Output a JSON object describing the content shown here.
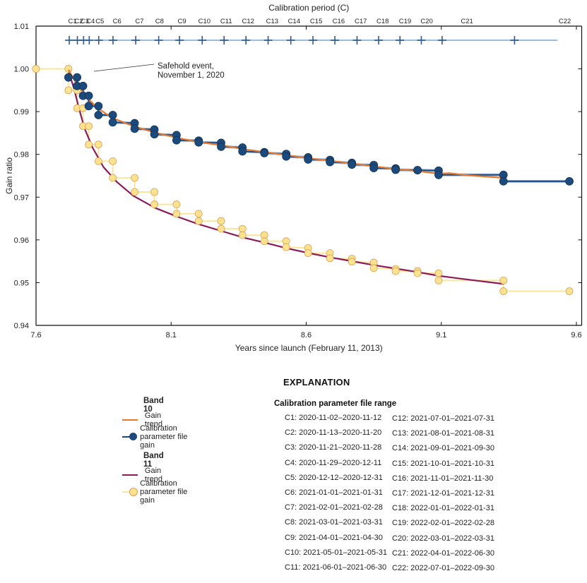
{
  "chart_data": {
    "type": "line",
    "title": "",
    "top_axis_label": "Calibration period (C)",
    "xlabel": "Years since launch (February 11, 2013)",
    "ylabel": "Gain ratio",
    "xlim": [
      7.6,
      9.66
    ],
    "ylim": [
      0.94,
      1.01
    ],
    "x_ticks": [
      7.6,
      8.1,
      8.6,
      9.1,
      9.6
    ],
    "x_tick_labels": [
      "7.6",
      "8.1",
      "8.6",
      "9.1",
      "9.6"
    ],
    "y_ticks": [
      0.94,
      0.95,
      0.96,
      0.97,
      0.98,
      0.99,
      1.0,
      1.01
    ],
    "y_tick_labels": [
      "0.94",
      "0.95",
      "0.96",
      "0.97",
      "0.98",
      "0.99",
      "1.00",
      "1.01"
    ],
    "calibration_periods": {
      "labels": [
        "C1",
        "C2",
        "C3",
        "C4",
        "C5",
        "C6",
        "C7",
        "C8",
        "C9",
        "C10",
        "C11",
        "C12",
        "C13",
        "C14",
        "C15",
        "C16",
        "C17",
        "C18",
        "C19",
        "C20",
        "C21",
        "C22"
      ],
      "label_x": [
        7.735,
        7.758,
        7.78,
        7.802,
        7.836,
        7.9,
        7.983,
        8.057,
        8.14,
        8.223,
        8.304,
        8.385,
        8.474,
        8.555,
        8.637,
        8.72,
        8.802,
        8.883,
        8.966,
        9.046,
        9.195,
        9.557
      ],
      "boundary_x": [
        7.723,
        7.753,
        7.776,
        7.797,
        7.832,
        7.885,
        7.969,
        8.054,
        8.131,
        8.215,
        8.296,
        8.377,
        8.459,
        8.543,
        8.625,
        8.706,
        8.788,
        8.868,
        8.947,
        9.026,
        9.103,
        9.371
      ],
      "line_end_x": 9.53,
      "gain_level": 1.0067
    },
    "annotation": {
      "text_line1": "Safehold event,",
      "text_line2": "November 1, 2020",
      "x": 7.72,
      "y": 0.9985
    },
    "series": [
      {
        "name": "Band 10 Calibration parameter file gain",
        "kind": "step-points",
        "color": "#1d4a7c",
        "line_color": "#1d4a7c",
        "points": [
          [
            7.72,
            0.998
          ],
          [
            7.752,
            0.998
          ],
          [
            7.752,
            0.996
          ],
          [
            7.774,
            0.996
          ],
          [
            7.774,
            0.9937
          ],
          [
            7.795,
            0.9937
          ],
          [
            7.795,
            0.9913
          ],
          [
            7.831,
            0.9913
          ],
          [
            7.831,
            0.9892
          ],
          [
            7.884,
            0.9892
          ],
          [
            7.884,
            0.9875
          ],
          [
            7.965,
            0.9873
          ],
          [
            7.965,
            0.986
          ],
          [
            8.038,
            0.9858
          ],
          [
            8.038,
            0.9847
          ],
          [
            8.12,
            0.9845
          ],
          [
            8.12,
            0.9833
          ],
          [
            8.202,
            0.9832
          ],
          [
            8.202,
            0.9828
          ],
          [
            8.285,
            0.9827
          ],
          [
            8.285,
            0.9818
          ],
          [
            8.364,
            0.9816
          ],
          [
            8.364,
            0.9807
          ],
          [
            8.445,
            0.9805
          ],
          [
            8.445,
            0.9803
          ],
          [
            8.526,
            0.9801
          ],
          [
            8.526,
            0.9795
          ],
          [
            8.607,
            0.9793
          ],
          [
            8.607,
            0.9788
          ],
          [
            8.688,
            0.9787
          ],
          [
            8.688,
            0.9782
          ],
          [
            8.769,
            0.978
          ],
          [
            8.769,
            0.9776
          ],
          [
            8.85,
            0.9775
          ],
          [
            8.85,
            0.9768
          ],
          [
            8.931,
            0.9767
          ],
          [
            8.931,
            0.9764
          ],
          [
            9.012,
            0.9763
          ],
          [
            9.012,
            0.9763
          ],
          [
            9.09,
            0.9762
          ],
          [
            9.09,
            0.9752
          ],
          [
            9.33,
            0.9752
          ],
          [
            9.33,
            0.9737
          ],
          [
            9.574,
            0.9737
          ]
        ]
      },
      {
        "name": "Band 10 Gain trend",
        "kind": "line",
        "color": "#e8782b",
        "points": [
          [
            7.72,
            0.9998
          ],
          [
            7.75,
            0.9965
          ],
          [
            7.78,
            0.994
          ],
          [
            7.82,
            0.9912
          ],
          [
            7.88,
            0.9886
          ],
          [
            7.96,
            0.9866
          ],
          [
            8.04,
            0.9851
          ],
          [
            8.12,
            0.9839
          ],
          [
            8.2,
            0.9829
          ],
          [
            8.29,
            0.9821
          ],
          [
            8.37,
            0.9812
          ],
          [
            8.45,
            0.9805
          ],
          [
            8.53,
            0.9798
          ],
          [
            8.61,
            0.9791
          ],
          [
            8.69,
            0.9785
          ],
          [
            8.77,
            0.9779
          ],
          [
            8.85,
            0.9772
          ],
          [
            8.93,
            0.9766
          ],
          [
            9.01,
            0.9761
          ],
          [
            9.09,
            0.9755
          ],
          [
            9.13,
            0.9756
          ],
          [
            9.2,
            0.9751
          ],
          [
            9.33,
            0.9745
          ]
        ]
      },
      {
        "name": "Band 11 Calibration parameter file gain",
        "kind": "step-points",
        "color": "#fde28f",
        "line_color": "#fbe69b",
        "marker_edge": "#d9a05a",
        "points": [
          [
            7.6,
            1.0
          ],
          [
            7.72,
            1.0
          ],
          [
            7.72,
            0.995
          ],
          [
            7.752,
            0.995
          ],
          [
            7.752,
            0.9908
          ],
          [
            7.774,
            0.9908
          ],
          [
            7.774,
            0.9866
          ],
          [
            7.795,
            0.9866
          ],
          [
            7.795,
            0.9823
          ],
          [
            7.831,
            0.9823
          ],
          [
            7.831,
            0.9784
          ],
          [
            7.884,
            0.9784
          ],
          [
            7.884,
            0.9745
          ],
          [
            7.965,
            0.9745
          ],
          [
            7.965,
            0.9712
          ],
          [
            8.038,
            0.9712
          ],
          [
            8.038,
            0.9683
          ],
          [
            8.12,
            0.9683
          ],
          [
            8.12,
            0.9661
          ],
          [
            8.202,
            0.9661
          ],
          [
            8.202,
            0.9644
          ],
          [
            8.285,
            0.9644
          ],
          [
            8.285,
            0.9626
          ],
          [
            8.364,
            0.9626
          ],
          [
            8.364,
            0.9611
          ],
          [
            8.445,
            0.9611
          ],
          [
            8.445,
            0.9597
          ],
          [
            8.526,
            0.9597
          ],
          [
            8.526,
            0.9583
          ],
          [
            8.607,
            0.9581
          ],
          [
            8.607,
            0.9569
          ],
          [
            8.688,
            0.9569
          ],
          [
            8.688,
            0.9557
          ],
          [
            8.769,
            0.9556
          ],
          [
            8.769,
            0.9549
          ],
          [
            8.85,
            0.9547
          ],
          [
            8.85,
            0.9534
          ],
          [
            8.931,
            0.9532
          ],
          [
            8.931,
            0.9527
          ],
          [
            9.012,
            0.9527
          ],
          [
            9.012,
            0.9522
          ],
          [
            9.09,
            0.9522
          ],
          [
            9.09,
            0.9505
          ],
          [
            9.33,
            0.9505
          ],
          [
            9.33,
            0.948
          ],
          [
            9.574,
            0.948
          ]
        ]
      },
      {
        "name": "Band 11 Gain trend",
        "kind": "line",
        "color": "#8c1a5a",
        "points": [
          [
            7.72,
            0.9995
          ],
          [
            7.74,
            0.9955
          ],
          [
            7.76,
            0.9905
          ],
          [
            7.78,
            0.986
          ],
          [
            7.81,
            0.9815
          ],
          [
            7.85,
            0.977
          ],
          [
            7.9,
            0.9735
          ],
          [
            7.96,
            0.9703
          ],
          [
            8.04,
            0.9675
          ],
          [
            8.12,
            0.9655
          ],
          [
            8.2,
            0.9637
          ],
          [
            8.29,
            0.962
          ],
          [
            8.37,
            0.9605
          ],
          [
            8.45,
            0.9593
          ],
          [
            8.53,
            0.958
          ],
          [
            8.61,
            0.9569
          ],
          [
            8.69,
            0.9559
          ],
          [
            8.77,
            0.955
          ],
          [
            8.85,
            0.9541
          ],
          [
            8.93,
            0.9533
          ],
          [
            9.01,
            0.9525
          ],
          [
            9.09,
            0.9516
          ],
          [
            9.2,
            0.9507
          ],
          [
            9.33,
            0.9497
          ]
        ]
      }
    ]
  },
  "legend": {
    "explanation_title": "EXPLANATION",
    "band10": {
      "title": "Band 10",
      "trend_label": "Gain trend",
      "gain_label": "Calibration parameter file gain",
      "trend_color": "#e8782b",
      "gain_color": "#1d4a7c"
    },
    "band11": {
      "title": "Band 11",
      "trend_label": "Gain trend",
      "gain_label": "Calibration parameter file gain",
      "trend_color": "#8c1a5a",
      "gain_color": "#fde28f"
    },
    "calibration_range_title": "Calibration parameter file range",
    "calibration_ranges_col1": [
      "C1: 2020-11-02–2020-11-12",
      "C2: 2020-11-13–2020-11-20",
      "C3: 2020-11-21–2020-11-28",
      "C4: 2020-11-29–2020-12-11",
      "C5: 2020-12-12–2020-12-31",
      "C6: 2021-01-01–2021-01-31",
      "C7: 2021-02-01–2021-02-28",
      "C8: 2021-03-01–2021-03-31",
      "C9: 2021-04-01–2021-04-30",
      "C10: 2021-05-01–2021-05-31",
      "C11: 2021-06-01–2021-06-30"
    ],
    "calibration_ranges_col2": [
      "C12: 2021-07-01–2021-07-31",
      "C13: 2021-08-01–2021-08-31",
      "C14: 2021-09-01–2021-09-30",
      "C15: 2021-10-01–2021-10-31",
      "C16: 2021-11-01–2021-11-30",
      "C17: 2021-12-01–2021-12-31",
      "C18: 2022-01-01–2022-01-31",
      "C19: 2022-02-01–2022-02-28",
      "C20: 2022-03-01–2022-03-31",
      "C21: 2022-04-01–2022-06-30",
      "C22: 2022-07-01–2022-09-30"
    ]
  }
}
